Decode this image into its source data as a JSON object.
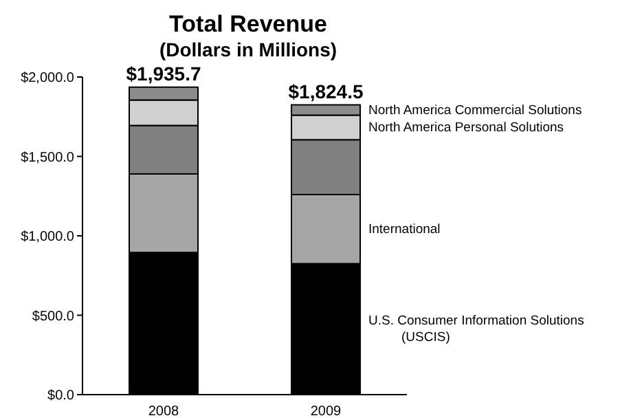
{
  "chart_data": {
    "type": "bar",
    "title": "Total Revenue",
    "subtitle": "(Dollars in Millions)",
    "categories": [
      "2008",
      "2009"
    ],
    "stacked": true,
    "legend": false,
    "grid": false,
    "series": [
      {
        "name": "U.S. Consumer Information Solutions (USCIS)",
        "color": "#000000",
        "values": [
          895,
          825
        ]
      },
      {
        "name": "International",
        "color": "#a6a6a6",
        "values": [
          495,
          435
        ]
      },
      {
        "color": "#808080",
        "values": [
          305,
          345
        ]
      },
      {
        "name": "North America Personal Solutions",
        "color": "#d0d0d0",
        "values": [
          160,
          155
        ]
      },
      {
        "name": "North America Commercial Solutions",
        "color": "#8c8c8c",
        "values": [
          80.7,
          64.5
        ]
      }
    ],
    "totals": [
      "$1,935.7",
      "$1,824.5"
    ],
    "ylim": [
      0,
      2000
    ],
    "yticks": [
      {
        "value": 0,
        "label": "$0.0"
      },
      {
        "value": 500,
        "label": "$500.0"
      },
      {
        "value": 1000,
        "label": "$1,000.0"
      },
      {
        "value": 1500,
        "label": "$1,500.0"
      },
      {
        "value": 2000,
        "label": "$2,000.0"
      }
    ]
  }
}
